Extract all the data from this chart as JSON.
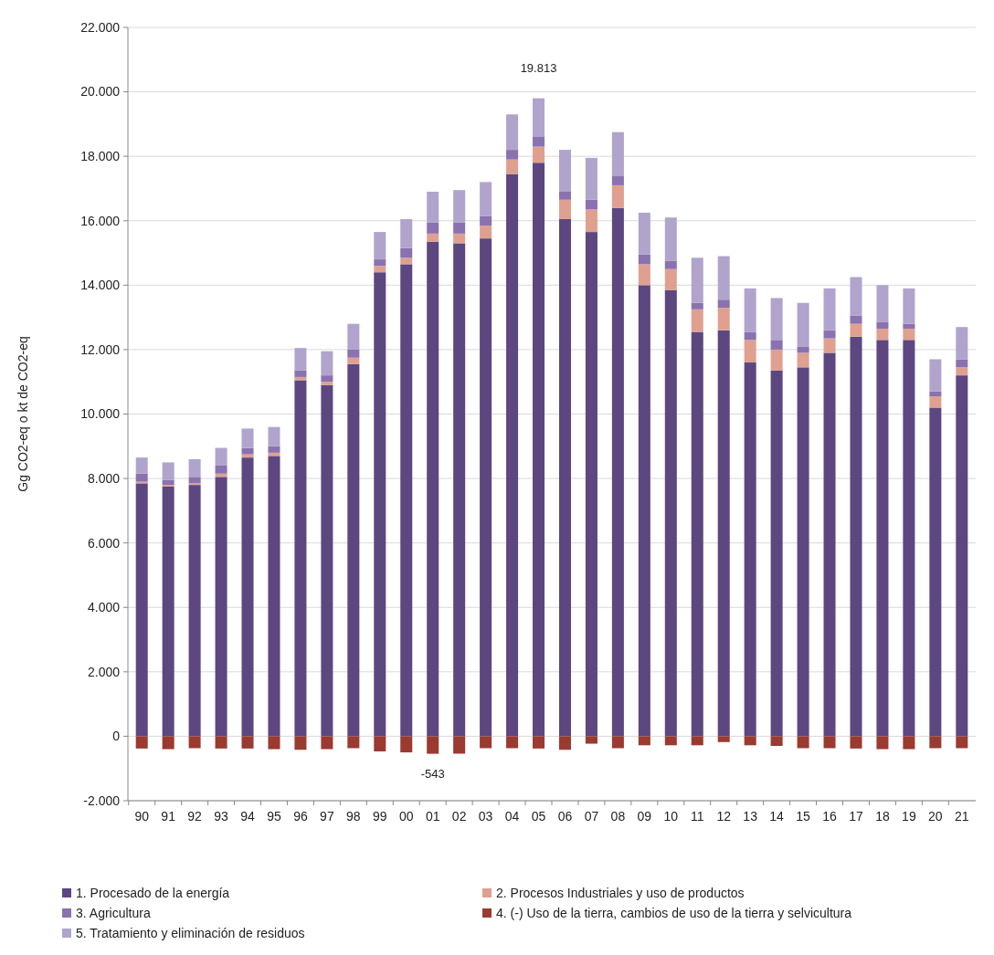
{
  "chart_data": {
    "type": "bar",
    "stacked": true,
    "ylabel": "Gg CO2-eq o kt de CO2-eq",
    "categories": [
      "90",
      "91",
      "92",
      "93",
      "94",
      "95",
      "96",
      "97",
      "98",
      "99",
      "00",
      "01",
      "02",
      "03",
      "04",
      "05",
      "06",
      "07",
      "08",
      "09",
      "10",
      "11",
      "12",
      "13",
      "14",
      "15",
      "16",
      "17",
      "18",
      "19",
      "20",
      "21"
    ],
    "series": [
      {
        "name": "1. Procesado de la energía",
        "color": "#5c4780",
        "values": [
          7850,
          7750,
          7800,
          8050,
          8650,
          8700,
          11050,
          10900,
          11550,
          14400,
          14650,
          15350,
          15300,
          15450,
          17450,
          17800,
          16050,
          15650,
          16400,
          14000,
          13850,
          12550,
          12600,
          11600,
          11350,
          11450,
          11900,
          12400,
          12300,
          12300,
          10200,
          11200
        ]
      },
      {
        "name": "2. Procesos Industriales y uso de productos",
        "color": "#e0a090",
        "values": [
          50,
          50,
          50,
          100,
          100,
          100,
          100,
          100,
          200,
          200,
          200,
          250,
          300,
          400,
          450,
          500,
          600,
          700,
          700,
          650,
          650,
          700,
          700,
          700,
          650,
          450,
          450,
          400,
          350,
          350,
          350,
          250
        ]
      },
      {
        "name": "3. Agricultura",
        "color": "#8a72b0",
        "values": [
          250,
          150,
          200,
          250,
          200,
          200,
          200,
          200,
          250,
          200,
          300,
          350,
          350,
          300,
          300,
          300,
          250,
          300,
          300,
          300,
          250,
          200,
          250,
          250,
          300,
          200,
          250,
          250,
          200,
          150,
          150,
          250
        ]
      },
      {
        "name": "4. (-) Uso de la tierra, cambios de uso de la tierra y selvicultura",
        "color": "#9b3a30",
        "values": [
          -380,
          -400,
          -370,
          -380,
          -380,
          -400,
          -420,
          -400,
          -370,
          -470,
          -500,
          -543,
          -540,
          -370,
          -370,
          -380,
          -420,
          -230,
          -370,
          -280,
          -280,
          -280,
          -180,
          -280,
          -300,
          -370,
          -370,
          -380,
          -400,
          -400,
          -370,
          -370
        ]
      },
      {
        "name": "5. Tratamiento y eliminación de residuos",
        "color": "#b0a4cc",
        "values": [
          500,
          550,
          550,
          550,
          600,
          600,
          700,
          750,
          800,
          850,
          900,
          950,
          1000,
          1050,
          1100,
          1200,
          1300,
          1300,
          1350,
          1300,
          1350,
          1400,
          1350,
          1350,
          1300,
          1350,
          1300,
          1200,
          1150,
          1100,
          1000,
          1000
        ]
      }
    ],
    "ylim": [
      -2000,
      22000
    ],
    "yticks": [
      {
        "value": -2000,
        "label": "-2.000"
      },
      0,
      {
        "value": 2000,
        "label": "2.000"
      },
      {
        "value": 4000,
        "label": "4.000"
      },
      {
        "value": 6000,
        "label": "6.000"
      },
      {
        "value": 8000,
        "label": "8.000"
      },
      {
        "value": 10000,
        "label": "10.000"
      },
      {
        "value": 12000,
        "label": "12.000"
      },
      {
        "value": 14000,
        "label": "14.000"
      },
      {
        "value": 16000,
        "label": "16.000"
      },
      {
        "value": 18000,
        "label": "18.000"
      },
      {
        "value": 20000,
        "label": "20.000"
      },
      {
        "value": 22000,
        "label": "22.000"
      }
    ],
    "grid": "y",
    "legend": "bottom",
    "annotations": [
      {
        "text": "19.813",
        "x": "05",
        "y": 19813
      },
      {
        "text": "-543",
        "x": "01",
        "y": -543
      }
    ]
  }
}
